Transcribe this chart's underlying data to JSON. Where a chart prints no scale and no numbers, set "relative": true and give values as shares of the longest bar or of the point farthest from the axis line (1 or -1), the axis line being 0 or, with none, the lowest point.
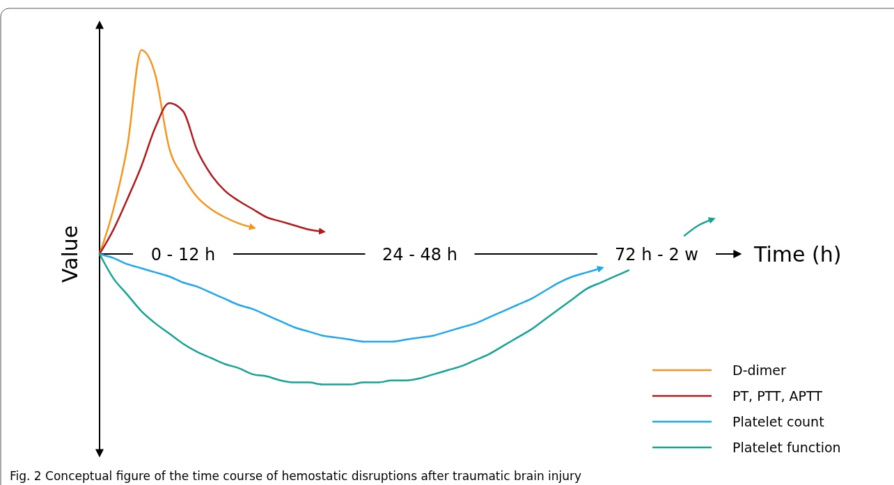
{
  "chart_data": {
    "type": "line",
    "relative": true,
    "xlabel": "Time (h)",
    "ylabel": "Value",
    "legend": "bottom right",
    "marker": "none",
    "line_style": "solid",
    "categories": [
      null,
      null,
      null,
      null,
      null,
      null,
      "0 - 12 h",
      null,
      null,
      null,
      null,
      null,
      null,
      null,
      null,
      null,
      null,
      null,
      null,
      null,
      null,
      null,
      null,
      "24 - 48 h",
      null,
      null,
      null,
      null,
      null,
      null,
      null,
      null,
      null,
      null,
      null,
      null,
      null,
      null,
      null,
      null,
      "72 h - 2 w",
      null,
      null,
      null,
      null,
      null,
      null
    ],
    "series": [
      {
        "name": "D-dimer",
        "color": "#f7941d",
        "values": [
          0,
          0.22,
          0.53,
          1,
          0.88,
          0.52,
          0.38,
          0.28,
          0.22,
          0.18,
          0.15,
          0.13,
          null,
          null,
          null,
          null,
          null,
          null,
          null,
          null,
          null,
          null,
          null,
          null,
          null,
          null,
          null,
          null,
          null,
          null,
          null,
          null,
          null,
          null,
          null,
          null,
          null,
          null,
          null,
          null,
          null,
          null,
          null,
          null,
          null,
          null,
          null
        ]
      },
      {
        "name": "PT, PTT, APTT",
        "color": "#b3191b",
        "values": [
          0,
          0.12,
          0.27,
          0.43,
          0.62,
          0.74,
          0.7,
          0.51,
          0.39,
          0.31,
          0.26,
          0.22,
          0.18,
          0.16,
          0.14,
          0.12,
          0.11,
          null,
          null,
          null,
          null,
          null,
          null,
          null,
          null,
          null,
          null,
          null,
          null,
          null,
          null,
          null,
          null,
          null,
          null,
          null,
          null,
          null,
          null,
          null,
          null,
          null,
          null,
          null,
          null,
          null,
          null
        ]
      },
      {
        "name": "Platelet count",
        "color": "#1ea7f0",
        "values": [
          0,
          -0.02,
          -0.05,
          -0.07,
          -0.09,
          -0.11,
          -0.14,
          -0.16,
          -0.19,
          -0.22,
          -0.25,
          -0.27,
          -0.3,
          -0.33,
          -0.36,
          -0.38,
          -0.4,
          -0.41,
          -0.42,
          -0.43,
          -0.43,
          -0.43,
          -0.42,
          -0.41,
          -0.4,
          -0.38,
          -0.36,
          -0.34,
          -0.31,
          -0.28,
          -0.25,
          -0.22,
          -0.18,
          -0.14,
          -0.11,
          -0.09,
          -0.07,
          null,
          null,
          null,
          null,
          null,
          null,
          null,
          null,
          null,
          null
        ]
      },
      {
        "name": "Platelet function",
        "color": "#14a394",
        "values": [
          0,
          -0.12,
          -0.2,
          -0.28,
          -0.34,
          -0.39,
          -0.44,
          -0.48,
          -0.51,
          -0.54,
          -0.56,
          -0.59,
          -0.6,
          -0.62,
          -0.63,
          -0.63,
          -0.64,
          -0.64,
          -0.64,
          -0.63,
          -0.63,
          -0.62,
          -0.62,
          -0.61,
          -0.59,
          -0.57,
          -0.55,
          -0.52,
          -0.49,
          -0.45,
          -0.41,
          -0.37,
          -0.32,
          -0.27,
          -0.22,
          -0.17,
          -0.14,
          -0.11,
          -0.08,
          null,
          null,
          null,
          0.09,
          0.14,
          0.17,
          null,
          null
        ]
      }
    ],
    "annotations": [
      "Fig. 2  Conceptual figure of the time course of hemostatic disruptions after traumatic brain injury"
    ]
  }
}
